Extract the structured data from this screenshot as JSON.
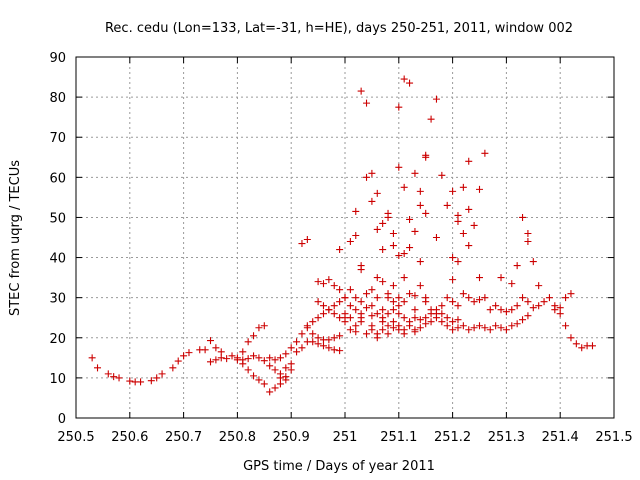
{
  "chart_data": {
    "type": "scatter",
    "title": "Rec. cedu (Lon=133, Lat=-31, h=HE), days 250-251, 2011, window 002",
    "xlabel": "GPS time / Days of year 2011",
    "ylabel": "STEC from uqrg / TECUs",
    "xlim": [
      250.5,
      251.5
    ],
    "ylim": [
      0,
      90
    ],
    "xticks": [
      250.5,
      250.6,
      250.7,
      250.8,
      250.9,
      251.0,
      251.1,
      251.2,
      251.3,
      251.4,
      251.5
    ],
    "xtick_labels": [
      "250.5",
      "250.6",
      "250.7",
      "250.8",
      "250.9",
      "251",
      "251.1",
      "251.2",
      "251.3",
      "251.4",
      "251.5"
    ],
    "yticks": [
      0,
      10,
      20,
      30,
      40,
      50,
      60,
      70,
      80,
      90
    ],
    "ytick_labels": [
      "0",
      "10",
      "20",
      "30",
      "40",
      "50",
      "60",
      "70",
      "80",
      "90"
    ],
    "grid": true,
    "marker": "+",
    "color": "#cc0000",
    "series": [
      {
        "name": "",
        "points": [
          [
            250.53,
            15
          ],
          [
            250.54,
            12.5
          ],
          [
            250.56,
            11
          ],
          [
            250.57,
            10.3
          ],
          [
            250.58,
            10
          ],
          [
            250.6,
            9.2
          ],
          [
            250.61,
            9
          ],
          [
            250.62,
            9
          ],
          [
            250.64,
            9.3
          ],
          [
            250.65,
            10
          ],
          [
            250.66,
            11
          ],
          [
            250.68,
            12.5
          ],
          [
            250.69,
            14.2
          ],
          [
            250.7,
            15.5
          ],
          [
            250.71,
            16.3
          ],
          [
            250.73,
            17
          ],
          [
            250.74,
            17
          ],
          [
            250.75,
            19.3
          ],
          [
            250.76,
            17.5
          ],
          [
            250.77,
            16.5
          ],
          [
            250.79,
            15.5
          ],
          [
            250.8,
            15
          ],
          [
            250.81,
            14.5
          ],
          [
            250.82,
            14.8
          ],
          [
            250.83,
            15.5
          ],
          [
            250.84,
            15
          ],
          [
            250.85,
            14.3
          ],
          [
            250.86,
            13
          ],
          [
            250.87,
            12
          ],
          [
            250.88,
            11
          ],
          [
            250.89,
            10.3
          ],
          [
            250.89,
            9.5
          ],
          [
            250.9,
            12
          ],
          [
            250.9,
            13.5
          ],
          [
            250.91,
            16.5
          ],
          [
            250.92,
            17.5
          ],
          [
            250.93,
            19
          ],
          [
            250.75,
            14
          ],
          [
            250.76,
            14.5
          ],
          [
            250.77,
            15
          ],
          [
            250.78,
            14.8
          ],
          [
            250.8,
            14.5
          ],
          [
            250.81,
            13.5
          ],
          [
            250.82,
            12
          ],
          [
            250.83,
            10.5
          ],
          [
            250.84,
            9.5
          ],
          [
            250.85,
            8.5
          ],
          [
            250.86,
            6.5
          ],
          [
            250.87,
            7.5
          ],
          [
            250.88,
            8.5
          ],
          [
            250.88,
            10
          ],
          [
            250.89,
            12.5
          ],
          [
            250.81,
            16.5
          ],
          [
            250.82,
            19
          ],
          [
            250.83,
            20.5
          ],
          [
            250.84,
            22.5
          ],
          [
            250.85,
            23
          ],
          [
            250.86,
            15
          ],
          [
            250.87,
            14.5
          ],
          [
            250.88,
            15
          ],
          [
            250.89,
            16
          ],
          [
            250.9,
            17.5
          ],
          [
            250.91,
            19
          ],
          [
            250.92,
            21
          ],
          [
            250.93,
            22.5
          ],
          [
            250.94,
            24
          ],
          [
            250.95,
            25
          ],
          [
            250.96,
            26
          ],
          [
            250.97,
            27
          ],
          [
            250.98,
            28
          ],
          [
            250.99,
            29
          ],
          [
            250.92,
            43.5
          ],
          [
            250.93,
            44.5
          ],
          [
            250.95,
            34
          ],
          [
            250.96,
            33.5
          ],
          [
            250.97,
            34.5
          ],
          [
            250.98,
            33
          ],
          [
            250.99,
            32
          ],
          [
            250.95,
            29
          ],
          [
            250.96,
            28
          ],
          [
            250.97,
            27
          ],
          [
            250.98,
            26
          ],
          [
            250.99,
            25
          ],
          [
            250.93,
            23
          ],
          [
            250.94,
            21
          ],
          [
            250.95,
            20
          ],
          [
            250.96,
            19.5
          ],
          [
            250.97,
            19.5
          ],
          [
            250.98,
            20
          ],
          [
            250.99,
            20.5
          ],
          [
            250.94,
            19
          ],
          [
            250.95,
            18.5
          ],
          [
            250.96,
            18
          ],
          [
            250.97,
            17.5
          ],
          [
            250.98,
            17
          ],
          [
            250.99,
            16.8
          ],
          [
            250.99,
            42
          ],
          [
            251.0,
            30
          ],
          [
            251.01,
            32
          ],
          [
            251.01,
            44
          ],
          [
            251.02,
            45.5
          ],
          [
            251.02,
            51.5
          ],
          [
            251.03,
            38
          ],
          [
            251.03,
            37
          ],
          [
            251.03,
            81.5
          ],
          [
            251.04,
            78.5
          ],
          [
            251.04,
            60
          ],
          [
            251.05,
            61
          ],
          [
            251.05,
            54
          ],
          [
            251.06,
            56
          ],
          [
            251.06,
            47
          ],
          [
            251.07,
            48.5
          ],
          [
            251.07,
            42
          ],
          [
            251.08,
            51
          ],
          [
            251.08,
            50
          ],
          [
            251.09,
            43
          ],
          [
            251.09,
            46
          ],
          [
            251.1,
            62.5
          ],
          [
            251.1,
            77.5
          ],
          [
            251.1,
            40.5
          ],
          [
            251.11,
            84.5
          ],
          [
            251.11,
            41
          ],
          [
            251.11,
            57.5
          ],
          [
            251.12,
            83.5
          ],
          [
            251.12,
            49.5
          ],
          [
            251.12,
            42.5
          ],
          [
            251.13,
            61
          ],
          [
            251.13,
            46.5
          ],
          [
            251.14,
            56.5
          ],
          [
            251.14,
            53
          ],
          [
            251.14,
            39
          ],
          [
            251.15,
            65
          ],
          [
            251.15,
            51
          ],
          [
            251.15,
            65.5
          ],
          [
            251.16,
            74.5
          ],
          [
            251.17,
            79.5
          ],
          [
            251.17,
            45
          ],
          [
            251.18,
            60.5
          ],
          [
            251.19,
            53
          ],
          [
            251.2,
            56.5
          ],
          [
            251.2,
            40
          ],
          [
            251.21,
            50.5
          ],
          [
            251.21,
            49
          ],
          [
            251.21,
            39
          ],
          [
            251.22,
            57.5
          ],
          [
            251.22,
            46
          ],
          [
            251.23,
            43
          ],
          [
            251.23,
            64
          ],
          [
            251.23,
            52
          ],
          [
            251.24,
            48
          ],
          [
            251.25,
            57
          ],
          [
            251.25,
            35
          ],
          [
            251.26,
            66
          ],
          [
            251.29,
            35
          ],
          [
            251.31,
            33.5
          ],
          [
            251.33,
            50
          ],
          [
            251.34,
            46
          ],
          [
            251.34,
            44
          ],
          [
            251.32,
            38
          ],
          [
            251.35,
            39
          ],
          [
            251.36,
            33
          ],
          [
            251.0,
            25
          ],
          [
            251.0,
            24
          ],
          [
            251.01,
            22
          ],
          [
            251.02,
            23
          ],
          [
            251.02,
            21.5
          ],
          [
            251.03,
            24
          ],
          [
            251.03,
            25
          ],
          [
            251.04,
            21
          ],
          [
            251.05,
            22
          ],
          [
            251.05,
            23
          ],
          [
            251.06,
            20
          ],
          [
            251.06,
            21
          ],
          [
            251.07,
            22
          ],
          [
            251.07,
            24
          ],
          [
            251.08,
            23
          ],
          [
            251.08,
            21
          ],
          [
            251.09,
            22.5
          ],
          [
            251.09,
            24
          ],
          [
            251.1,
            23
          ],
          [
            251.1,
            22
          ],
          [
            251.11,
            21
          ],
          [
            251.11,
            22
          ],
          [
            251.12,
            23
          ],
          [
            251.13,
            22
          ],
          [
            251.13,
            21.5
          ],
          [
            251.14,
            22.5
          ],
          [
            251.15,
            23.5
          ],
          [
            251.16,
            24
          ],
          [
            251.17,
            25
          ],
          [
            251.18,
            24
          ],
          [
            251.19,
            23
          ],
          [
            251.2,
            22
          ],
          [
            251.21,
            22.5
          ],
          [
            251.22,
            23
          ],
          [
            251.23,
            22
          ],
          [
            251.24,
            22.5
          ],
          [
            251.25,
            23
          ],
          [
            251.26,
            22.5
          ],
          [
            251.27,
            22
          ],
          [
            251.28,
            23
          ],
          [
            251.29,
            22.5
          ],
          [
            251.3,
            22
          ],
          [
            251.31,
            23
          ],
          [
            251.32,
            23.5
          ],
          [
            251.33,
            24.5
          ],
          [
            251.34,
            25.5
          ],
          [
            251.0,
            30
          ],
          [
            251.01,
            28
          ],
          [
            251.02,
            30
          ],
          [
            251.03,
            29
          ],
          [
            251.04,
            31
          ],
          [
            251.05,
            28
          ],
          [
            251.05,
            32
          ],
          [
            251.06,
            35
          ],
          [
            251.06,
            30
          ],
          [
            251.07,
            34
          ],
          [
            251.07,
            27
          ],
          [
            251.08,
            31
          ],
          [
            251.08,
            30
          ],
          [
            251.09,
            29
          ],
          [
            251.09,
            33
          ],
          [
            251.1,
            30
          ],
          [
            251.1,
            28
          ],
          [
            251.11,
            35
          ],
          [
            251.11,
            29
          ],
          [
            251.12,
            31
          ],
          [
            251.13,
            30.5
          ],
          [
            251.13,
            27
          ],
          [
            251.14,
            33
          ],
          [
            251.15,
            30
          ],
          [
            251.15,
            29
          ],
          [
            251.16,
            27
          ],
          [
            251.17,
            26
          ],
          [
            251.18,
            28
          ],
          [
            251.19,
            30
          ],
          [
            251.2,
            34.5
          ],
          [
            251.2,
            29
          ],
          [
            251.21,
            28
          ],
          [
            251.22,
            31
          ],
          [
            251.23,
            30
          ],
          [
            251.24,
            29
          ],
          [
            251.25,
            29.5
          ],
          [
            251.26,
            30
          ],
          [
            251.27,
            27
          ],
          [
            251.28,
            28
          ],
          [
            251.29,
            27
          ],
          [
            251.3,
            26.5
          ],
          [
            251.31,
            27
          ],
          [
            251.32,
            28
          ],
          [
            251.33,
            30
          ],
          [
            251.34,
            29
          ],
          [
            251.35,
            27.5
          ],
          [
            251.36,
            28
          ],
          [
            251.37,
            29
          ],
          [
            251.38,
            30
          ],
          [
            251.39,
            28
          ],
          [
            251.4,
            27.5
          ],
          [
            251.41,
            30
          ],
          [
            251.42,
            31
          ],
          [
            251.0,
            26
          ],
          [
            251.01,
            25
          ],
          [
            251.02,
            27
          ],
          [
            251.03,
            26
          ],
          [
            251.04,
            27.5
          ],
          [
            251.05,
            25.5
          ],
          [
            251.06,
            26
          ],
          [
            251.07,
            25
          ],
          [
            251.08,
            26
          ],
          [
            251.09,
            27
          ],
          [
            251.1,
            26
          ],
          [
            251.11,
            25
          ],
          [
            251.12,
            24
          ],
          [
            251.13,
            25
          ],
          [
            251.14,
            24.5
          ],
          [
            251.15,
            25
          ],
          [
            251.16,
            26
          ],
          [
            251.17,
            27
          ],
          [
            251.18,
            26
          ],
          [
            251.19,
            25
          ],
          [
            251.2,
            24
          ],
          [
            251.21,
            24.5
          ],
          [
            251.39,
            27
          ],
          [
            251.4,
            26
          ],
          [
            251.41,
            23
          ],
          [
            251.42,
            20
          ],
          [
            251.43,
            18.5
          ],
          [
            251.44,
            17.5
          ],
          [
            251.45,
            18
          ],
          [
            251.46,
            18
          ]
        ]
      }
    ]
  }
}
